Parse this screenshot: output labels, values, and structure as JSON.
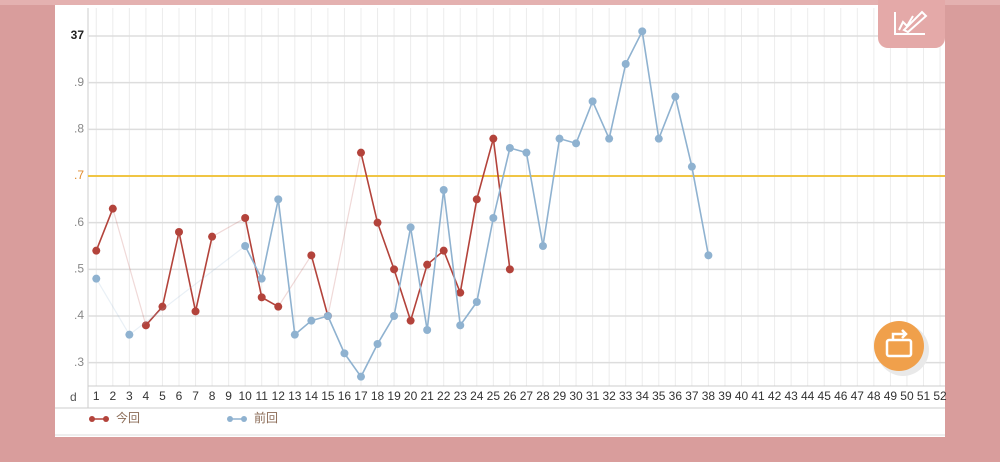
{
  "chart_data": {
    "type": "line",
    "x_label": "d",
    "x": [
      1,
      2,
      3,
      4,
      5,
      6,
      7,
      8,
      9,
      10,
      11,
      12,
      13,
      14,
      15,
      16,
      17,
      18,
      19,
      20,
      21,
      22,
      23,
      24,
      25,
      26,
      27,
      28,
      29,
      30,
      31,
      32,
      33,
      34,
      35,
      36,
      37,
      38,
      39,
      40,
      41,
      42,
      43,
      44,
      45,
      46,
      47,
      48,
      49,
      50,
      51,
      52
    ],
    "xlim": [
      0.5,
      52.3
    ],
    "ylim": [
      36.25,
      37.06
    ],
    "yticks": [
      {
        "value": 36.3,
        "label": ".3"
      },
      {
        "value": 36.4,
        "label": ".4"
      },
      {
        "value": 36.5,
        "label": ".5"
      },
      {
        "value": 36.6,
        "label": ".6"
      },
      {
        "value": 36.7,
        "label": ".7"
      },
      {
        "value": 36.8,
        "label": ".8"
      },
      {
        "value": 36.9,
        "label": ".9"
      },
      37
    ],
    "grid": true,
    "threshold": 36.7,
    "threshold_color": "#f0c544",
    "series": [
      {
        "name": "今回",
        "color": "#b3433b",
        "values": [
          36.54,
          36.63,
          null,
          36.38,
          36.42,
          36.58,
          36.41,
          36.57,
          null,
          36.61,
          36.44,
          36.42,
          null,
          36.53,
          36.4,
          null,
          36.75,
          36.6,
          36.5,
          36.39,
          36.51,
          36.54,
          36.45,
          36.65,
          36.78,
          36.5,
          null,
          null,
          null,
          null,
          null,
          null,
          null,
          null,
          null,
          null,
          null,
          null,
          null,
          null,
          null,
          null,
          null,
          null,
          null,
          null,
          null,
          null,
          null,
          null,
          null,
          null
        ]
      },
      {
        "name": "前回",
        "color": "#8fb2d0",
        "values": [
          36.48,
          null,
          36.36,
          null,
          null,
          null,
          null,
          null,
          null,
          36.55,
          36.48,
          36.65,
          36.36,
          36.39,
          36.4,
          36.32,
          36.27,
          36.34,
          36.4,
          36.59,
          36.37,
          36.67,
          36.38,
          36.43,
          36.61,
          36.76,
          36.75,
          36.55,
          36.78,
          36.77,
          36.86,
          36.78,
          36.94,
          37.01,
          36.78,
          36.87,
          36.72,
          36.53,
          null,
          null,
          null,
          null,
          null,
          null,
          null,
          null,
          null,
          null,
          null,
          null,
          null,
          null
        ]
      }
    ]
  }
}
